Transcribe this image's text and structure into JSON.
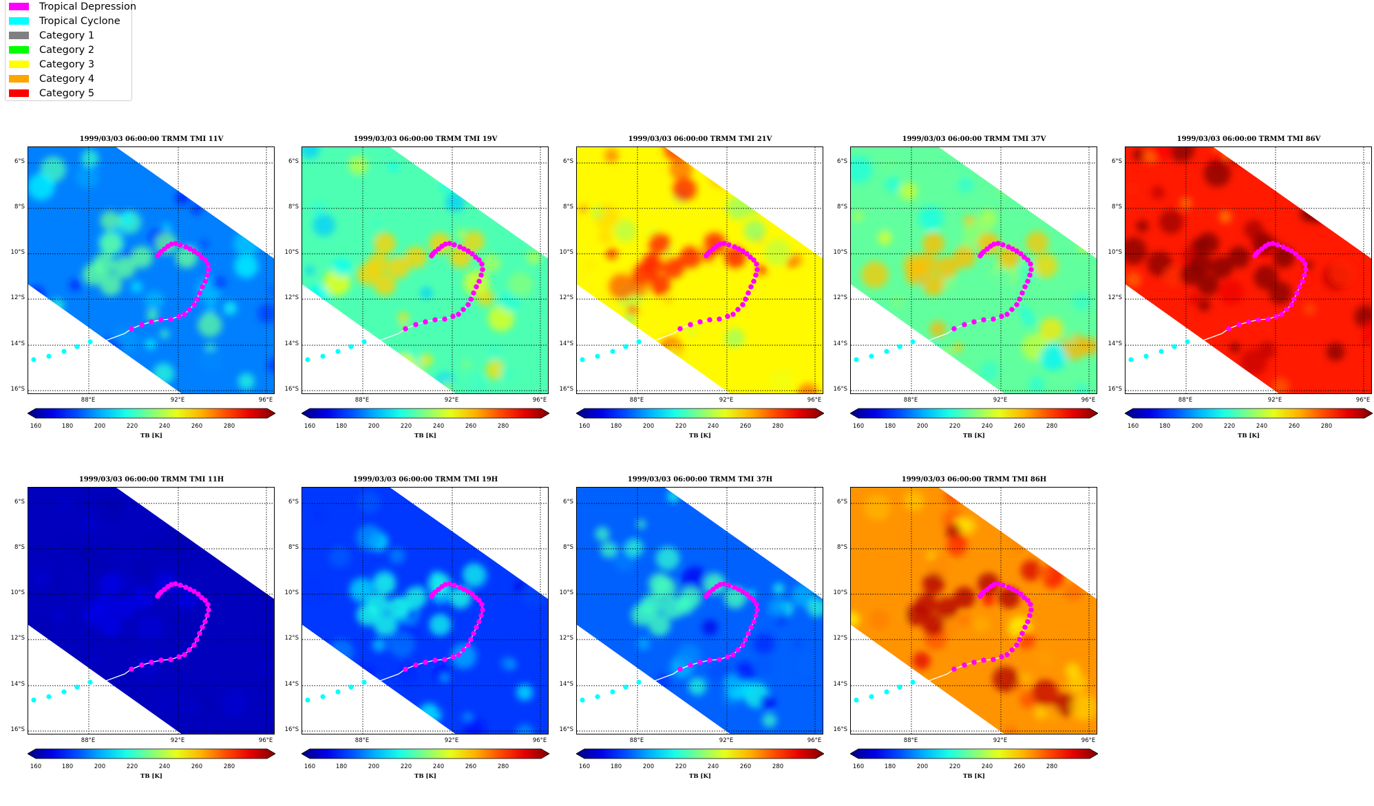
{
  "legend": {
    "items": [
      {
        "label": "Tropical Depression",
        "color": "#ff00ff"
      },
      {
        "label": "Tropical Cyclone",
        "color": "#00ffff"
      },
      {
        "label": "Category 1",
        "color": "#808080"
      },
      {
        "label": "Category 2",
        "color": "#00ff00"
      },
      {
        "label": "Category 3",
        "color": "#ffff00"
      },
      {
        "label": "Category 4",
        "color": "#ffa500"
      },
      {
        "label": "Category 5",
        "color": "#ff0000"
      }
    ]
  },
  "lat_ticks": [
    "6°S",
    "8°S",
    "10°S",
    "12°S",
    "14°S",
    "16°S"
  ],
  "lon_ticks": [
    "88°E",
    "92°E",
    "96°E"
  ],
  "colorbar": {
    "ticks": [
      "160",
      "180",
      "200",
      "220",
      "240",
      "260",
      "280"
    ],
    "label": "TB [K]",
    "colormap": "jet"
  },
  "panels": [
    {
      "title": "1999/03/03 06:00:00  TRMM TMI 11V",
      "level": 0.25
    },
    {
      "title": "1999/03/03 06:00:00  TRMM TMI 19V",
      "level": 0.45
    },
    {
      "title": "1999/03/03 06:00:00  TRMM TMI 21V",
      "level": 0.63
    },
    {
      "title": "1999/03/03 06:00:00  TRMM TMI 37V",
      "level": 0.47
    },
    {
      "title": "1999/03/03 06:00:00  TRMM TMI 86V",
      "level": 0.85
    },
    {
      "title": "1999/03/03 06:00:00  TRMM TMI 11H",
      "level": 0.06
    },
    {
      "title": "1999/03/03 06:00:00  TRMM TMI 19H",
      "level": 0.18
    },
    {
      "title": "1999/03/03 06:00:00  TRMM TMI 37H",
      "level": 0.22
    },
    {
      "title": "1999/03/03 06:00:00  TRMM TMI 86H",
      "level": 0.73
    }
  ]
}
